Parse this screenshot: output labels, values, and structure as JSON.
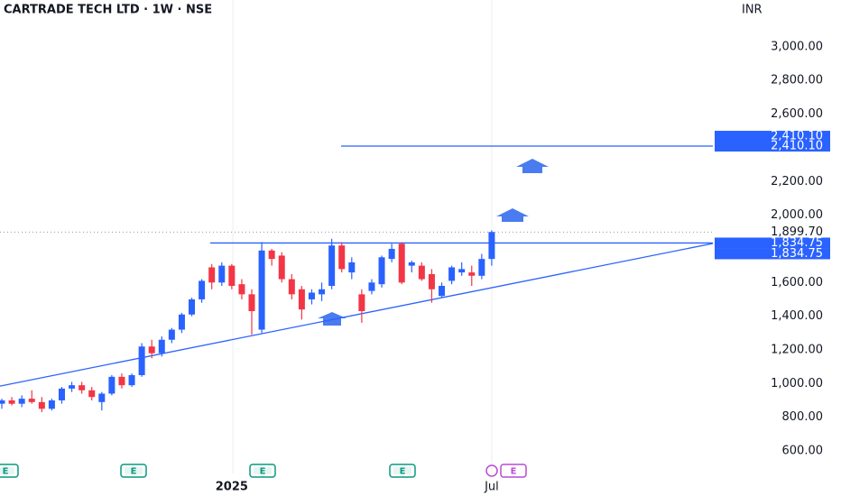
{
  "chart_data": {
    "type": "candlestick",
    "title": "CARTRADE TECH LTD · 1W · NSE",
    "currency": "INR",
    "categories": [
      null,
      null,
      null,
      null,
      null,
      null,
      null,
      null,
      null,
      null,
      null,
      null,
      null,
      null,
      null,
      null,
      null,
      null,
      null,
      null,
      null,
      null,
      null,
      "2025",
      null,
      null,
      null,
      null,
      null,
      null,
      null,
      null,
      null,
      null,
      null,
      null,
      null,
      null,
      null,
      null,
      null,
      null,
      null,
      null,
      null,
      null,
      null,
      null,
      null,
      "Jul"
    ],
    "open": [
      880,
      900,
      880,
      910,
      890,
      850,
      900,
      970,
      990,
      960,
      890,
      940,
      1040,
      990,
      1050,
      1220,
      1180,
      1260,
      1320,
      1410,
      1500,
      1690,
      1600,
      1700,
      1590,
      1530,
      1320,
      1790,
      1760,
      1620,
      1560,
      1500,
      1530,
      1580,
      1820,
      1660,
      1530,
      1550,
      1590,
      1740,
      1830,
      1700,
      1700,
      1650,
      1520,
      1610,
      1660,
      1660,
      1640,
      1740
    ],
    "high": [
      910,
      920,
      930,
      960,
      920,
      910,
      980,
      1010,
      1010,
      980,
      950,
      1050,
      1060,
      1060,
      1240,
      1260,
      1280,
      1330,
      1420,
      1510,
      1620,
      1710,
      1720,
      1710,
      1620,
      1560,
      1840,
      1800,
      1780,
      1650,
      1580,
      1560,
      1600,
      1860,
      1840,
      1750,
      1560,
      1620,
      1760,
      1830,
      1840,
      1730,
      1720,
      1680,
      1600,
      1700,
      1720,
      1700,
      1770,
      1910
    ],
    "low": [
      850,
      870,
      860,
      880,
      830,
      840,
      880,
      950,
      940,
      900,
      840,
      930,
      970,
      980,
      1040,
      1150,
      1160,
      1240,
      1300,
      1400,
      1480,
      1560,
      1580,
      1560,
      1500,
      1290,
      1300,
      1700,
      1600,
      1500,
      1380,
      1470,
      1490,
      1560,
      1660,
      1620,
      1360,
      1530,
      1570,
      1720,
      1590,
      1660,
      1610,
      1480,
      1510,
      1590,
      1640,
      1580,
      1620,
      1700
    ],
    "close": [
      900,
      880,
      910,
      890,
      850,
      900,
      970,
      990,
      960,
      920,
      940,
      1040,
      990,
      1050,
      1220,
      1180,
      1260,
      1320,
      1410,
      1500,
      1610,
      1600,
      1700,
      1580,
      1530,
      1430,
      1790,
      1740,
      1620,
      1530,
      1440,
      1540,
      1560,
      1820,
      1680,
      1720,
      1430,
      1600,
      1750,
      1800,
      1600,
      1720,
      1620,
      1560,
      1580,
      1690,
      1680,
      1640,
      1740,
      1900
    ],
    "up_color": "#2962ff",
    "down_color": "#f23645",
    "ylim": [
      466,
      3278
    ],
    "yticks": [
      {
        "value": 600,
        "label": "600.00"
      },
      {
        "value": 800,
        "label": "800.00"
      },
      {
        "value": 1000,
        "label": "1,000.00"
      },
      {
        "value": 1200,
        "label": "1,200.00"
      },
      {
        "value": 1400,
        "label": "1,400.00"
      },
      {
        "value": 1600,
        "label": "1,600.00"
      },
      {
        "value": 2000,
        "label": "2,000.00"
      },
      {
        "value": 2200,
        "label": "2,200.00"
      },
      {
        "value": 2600,
        "label": "2,600.00"
      },
      {
        "value": 2800,
        "label": "2,800.00"
      },
      {
        "value": 3000,
        "label": "3,000.00"
      }
    ],
    "price_lines": [
      {
        "value": 2410.1,
        "labels": [
          "2,410.10",
          "2,410.10"
        ]
      },
      {
        "value": 1899.7,
        "labels": [
          "1,899.70"
        ],
        "dotted": true
      },
      {
        "value": 1834.75,
        "labels": [
          "1,834.75",
          "1,834.75"
        ]
      }
    ],
    "trend_line": {
      "start": 985,
      "end": 1832
    },
    "events": [
      "E",
      "E",
      "E",
      "E",
      "E"
    ]
  }
}
